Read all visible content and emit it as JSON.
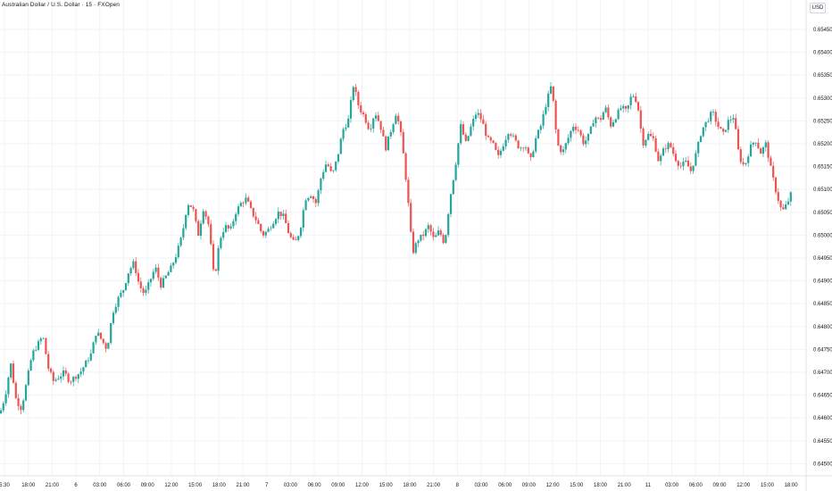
{
  "header": {
    "title": "Australian Dollar / U.S. Dollar · 15 · FXOpen",
    "currency": "USD"
  },
  "colors": {
    "up": "#26a69a",
    "down": "#ef5350",
    "grid": "#f0f3fa",
    "axis_text": "#131722"
  },
  "chart_data": {
    "type": "candlestick",
    "title": "Australian Dollar / U.S. Dollar · 15 · FXOpen",
    "y_ticks": [
      "0.65450",
      "0.65400",
      "0.65350",
      "0.65300",
      "0.65250",
      "0.65200",
      "0.65150",
      "0.65100",
      "0.65050",
      "0.65000",
      "0.64950",
      "0.64900",
      "0.64850",
      "0.64800",
      "0.64750",
      "0.64700",
      "0.64650",
      "0.64600",
      "0.64550",
      "0.64500"
    ],
    "x_ticks": [
      "5:30",
      "18:00",
      "21:00",
      "6",
      "03:00",
      "06:00",
      "09:00",
      "12:00",
      "15:00",
      "18:00",
      "21:00",
      "7",
      "03:00",
      "06:00",
      "09:00",
      "12:00",
      "15:00",
      "18:00",
      "21:00",
      "8",
      "03:00",
      "06:00",
      "09:00",
      "12:00",
      "15:00",
      "18:00",
      "21:00",
      "11",
      "03:00",
      "06:00",
      "09:00",
      "12:00",
      "15:00",
      "18:00"
    ],
    "ylim": [
      0.6448,
      0.6549
    ],
    "grid": true,
    "close_path": [
      [
        0,
        0.6461
      ],
      [
        6,
        0.6465
      ],
      [
        12,
        0.6472
      ],
      [
        18,
        0.6464
      ],
      [
        24,
        0.6462
      ],
      [
        30,
        0.6468
      ],
      [
        36,
        0.6474
      ],
      [
        42,
        0.6476
      ],
      [
        48,
        0.6478
      ],
      [
        54,
        0.6471
      ],
      [
        60,
        0.6468
      ],
      [
        66,
        0.6469
      ],
      [
        72,
        0.647
      ],
      [
        78,
        0.6468
      ],
      [
        84,
        0.6469
      ],
      [
        90,
        0.647
      ],
      [
        96,
        0.6472
      ],
      [
        102,
        0.6474
      ],
      [
        108,
        0.6479
      ],
      [
        114,
        0.6477
      ],
      [
        120,
        0.6475
      ],
      [
        126,
        0.6483
      ],
      [
        132,
        0.6486
      ],
      [
        138,
        0.6488
      ],
      [
        144,
        0.6492
      ],
      [
        150,
        0.6494
      ],
      [
        156,
        0.6489
      ],
      [
        162,
        0.6487
      ],
      [
        168,
        0.649
      ],
      [
        174,
        0.6493
      ],
      [
        180,
        0.6489
      ],
      [
        186,
        0.6491
      ],
      [
        192,
        0.6493
      ],
      [
        198,
        0.6496
      ],
      [
        204,
        0.65
      ],
      [
        210,
        0.6507
      ],
      [
        216,
        0.6506
      ],
      [
        222,
        0.65
      ],
      [
        228,
        0.6506
      ],
      [
        234,
        0.6502
      ],
      [
        240,
        0.649
      ],
      [
        246,
        0.6499
      ],
      [
        252,
        0.6502
      ],
      [
        258,
        0.6501
      ],
      [
        264,
        0.6505
      ],
      [
        270,
        0.6507
      ],
      [
        276,
        0.6508
      ],
      [
        282,
        0.6505
      ],
      [
        288,
        0.6503
      ],
      [
        294,
        0.65
      ],
      [
        300,
        0.6501
      ],
      [
        306,
        0.6503
      ],
      [
        312,
        0.6505
      ],
      [
        318,
        0.6504
      ],
      [
        324,
        0.65
      ],
      [
        330,
        0.6498
      ],
      [
        336,
        0.6501
      ],
      [
        342,
        0.6508
      ],
      [
        348,
        0.6509
      ],
      [
        354,
        0.6507
      ],
      [
        360,
        0.6513
      ],
      [
        366,
        0.6516
      ],
      [
        372,
        0.6513
      ],
      [
        378,
        0.6517
      ],
      [
        384,
        0.6523
      ],
      [
        390,
        0.6525
      ],
      [
        396,
        0.6533
      ],
      [
        402,
        0.6528
      ],
      [
        408,
        0.6526
      ],
      [
        414,
        0.6523
      ],
      [
        420,
        0.6527
      ],
      [
        426,
        0.6524
      ],
      [
        432,
        0.6519
      ],
      [
        438,
        0.6523
      ],
      [
        444,
        0.6527
      ],
      [
        450,
        0.6521
      ],
      [
        456,
        0.651
      ],
      [
        462,
        0.6496
      ],
      [
        468,
        0.6499
      ],
      [
        474,
        0.65
      ],
      [
        480,
        0.6502
      ],
      [
        486,
        0.6499
      ],
      [
        492,
        0.6501
      ],
      [
        498,
        0.6498
      ],
      [
        504,
        0.6508
      ],
      [
        510,
        0.6515
      ],
      [
        516,
        0.6524
      ],
      [
        522,
        0.652
      ],
      [
        528,
        0.6524
      ],
      [
        534,
        0.6527
      ],
      [
        540,
        0.6525
      ],
      [
        546,
        0.6521
      ],
      [
        552,
        0.652
      ],
      [
        558,
        0.6517
      ],
      [
        564,
        0.652
      ],
      [
        570,
        0.6523
      ],
      [
        576,
        0.6521
      ],
      [
        582,
        0.6519
      ],
      [
        588,
        0.652
      ],
      [
        594,
        0.6516
      ],
      [
        600,
        0.6521
      ],
      [
        606,
        0.6524
      ],
      [
        612,
        0.6529
      ],
      [
        618,
        0.6533
      ],
      [
        624,
        0.652
      ],
      [
        630,
        0.6518
      ],
      [
        636,
        0.6521
      ],
      [
        642,
        0.6524
      ],
      [
        648,
        0.6523
      ],
      [
        654,
        0.652
      ],
      [
        660,
        0.6522
      ],
      [
        666,
        0.6526
      ],
      [
        672,
        0.6525
      ],
      [
        678,
        0.6528
      ],
      [
        684,
        0.6524
      ],
      [
        690,
        0.6526
      ],
      [
        696,
        0.6528
      ],
      [
        702,
        0.6527
      ],
      [
        708,
        0.6531
      ],
      [
        714,
        0.6529
      ],
      [
        720,
        0.652
      ],
      [
        726,
        0.6522
      ],
      [
        732,
        0.6521
      ],
      [
        738,
        0.6516
      ],
      [
        744,
        0.6519
      ],
      [
        750,
        0.652
      ],
      [
        756,
        0.6517
      ],
      [
        762,
        0.6515
      ],
      [
        768,
        0.6516
      ],
      [
        774,
        0.6514
      ],
      [
        780,
        0.6518
      ],
      [
        786,
        0.6523
      ],
      [
        792,
        0.6525
      ],
      [
        798,
        0.6527
      ],
      [
        804,
        0.6524
      ],
      [
        810,
        0.6522
      ],
      [
        816,
        0.6525
      ],
      [
        822,
        0.6526
      ],
      [
        828,
        0.6517
      ],
      [
        834,
        0.6515
      ],
      [
        840,
        0.6519
      ],
      [
        846,
        0.6521
      ],
      [
        852,
        0.6518
      ],
      [
        858,
        0.652
      ],
      [
        864,
        0.6514
      ],
      [
        870,
        0.6509
      ],
      [
        876,
        0.6505
      ],
      [
        882,
        0.6507
      ],
      [
        886,
        0.6509
      ]
    ]
  }
}
